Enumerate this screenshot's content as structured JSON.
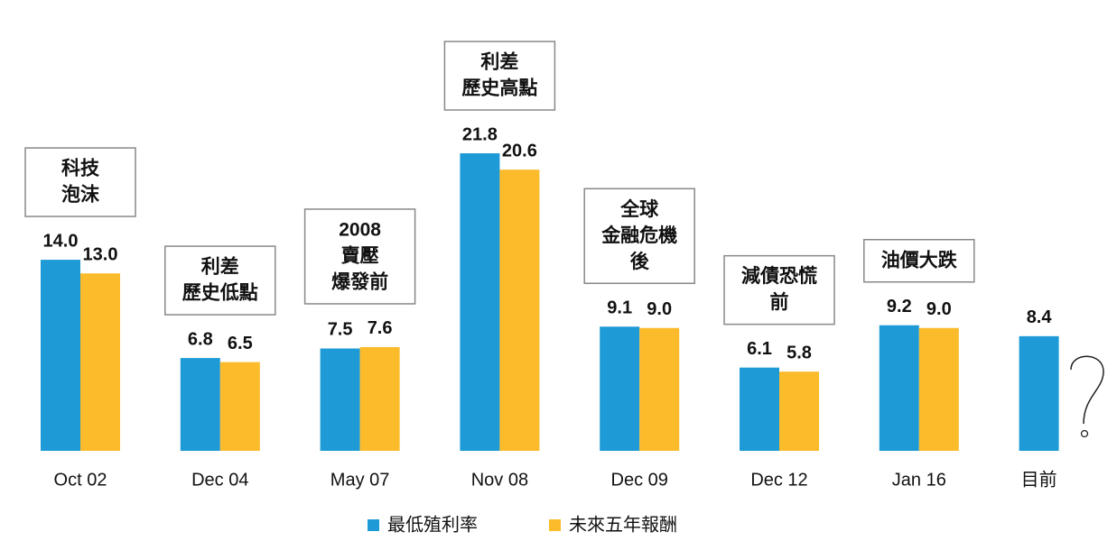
{
  "chart_data": {
    "type": "bar",
    "categories": [
      "Oct 02",
      "Dec 04",
      "May 07",
      "Nov 08",
      "Dec 09",
      "Dec 12",
      "Jan 16",
      "目前"
    ],
    "series": [
      {
        "name": "最低殖利率",
        "color": "#1e9bd7",
        "values": [
          14.0,
          6.8,
          7.5,
          21.8,
          9.1,
          6.1,
          9.2,
          8.4
        ],
        "value_labels": [
          "14.0",
          "6.8",
          "7.5",
          "21.8",
          "9.1",
          "6.1",
          "9.2",
          "8.4"
        ]
      },
      {
        "name": "未來五年報酬",
        "color": "#fbbb2a",
        "values": [
          13.0,
          6.5,
          7.6,
          20.6,
          9.0,
          5.8,
          9.0,
          null
        ],
        "value_labels": [
          "13.0",
          "6.5",
          "7.6",
          "20.6",
          "9.0",
          "5.8",
          "9.0",
          null
        ]
      }
    ],
    "annotations": [
      [
        "科技",
        "泡沫"
      ],
      [
        "利差",
        "歷史低點"
      ],
      [
        "2008",
        "賣壓",
        "爆發前"
      ],
      [
        "利差",
        "歷史高點"
      ],
      [
        "全球",
        "金融危機",
        "後"
      ],
      [
        "減債恐慌",
        "前"
      ],
      [
        "油價大跌"
      ],
      null
    ],
    "legend": "bottom"
  }
}
